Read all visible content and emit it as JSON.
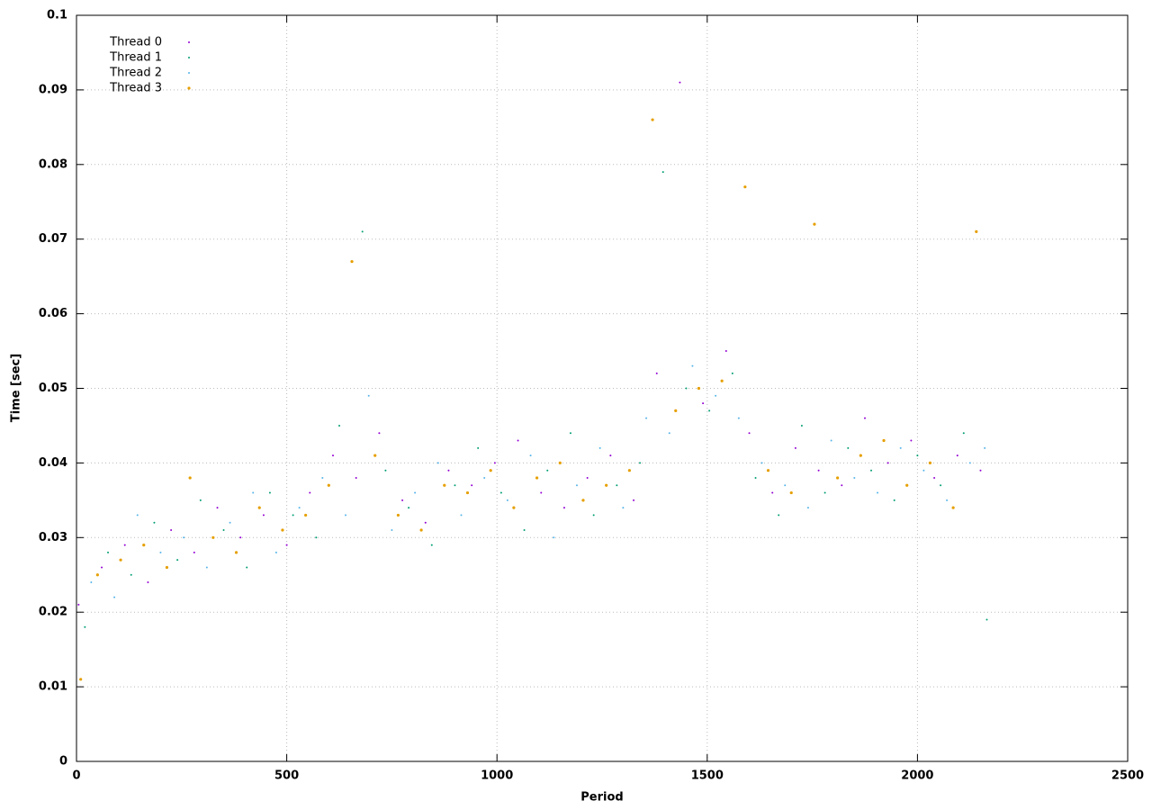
{
  "chart_data": {
    "type": "scatter",
    "x_label": "Period",
    "y_label": "Time [sec]",
    "xlim": [
      0,
      2500
    ],
    "xticks": [
      0,
      500,
      1000,
      1500,
      2000,
      2500
    ],
    "ylim": [
      0,
      0.1
    ],
    "yticks": [
      0,
      0.01,
      0.02,
      0.03,
      0.04,
      0.05,
      0.06,
      0.07,
      0.08,
      0.09,
      0.1
    ],
    "grid": true,
    "legend": "top-left",
    "series": [
      {
        "name": "Thread 0",
        "color": "#9400d3",
        "x": [
          5,
          60,
          115,
          170,
          225,
          280,
          335,
          390,
          445,
          500,
          555,
          610,
          665,
          720,
          775,
          830,
          885,
          940,
          995,
          1050,
          1105,
          1160,
          1215,
          1270,
          1325,
          1380,
          1435,
          1490,
          1545,
          1600,
          1655,
          1710,
          1765,
          1820,
          1875,
          1930,
          1985,
          2040,
          2095,
          2150
        ],
        "values": [
          0.021,
          0.026,
          0.029,
          0.024,
          0.031,
          0.028,
          0.034,
          0.03,
          0.033,
          0.029,
          0.036,
          0.041,
          0.038,
          0.044,
          0.035,
          0.032,
          0.039,
          0.037,
          0.04,
          0.043,
          0.036,
          0.034,
          0.038,
          0.041,
          0.035,
          0.052,
          0.091,
          0.048,
          0.055,
          0.044,
          0.036,
          0.042,
          0.039,
          0.037,
          0.046,
          0.04,
          0.043,
          0.038,
          0.041,
          0.039
        ]
      },
      {
        "name": "Thread 1",
        "color": "#009e73",
        "x": [
          20,
          75,
          130,
          185,
          240,
          295,
          350,
          405,
          460,
          515,
          570,
          625,
          680,
          735,
          790,
          845,
          900,
          955,
          1010,
          1065,
          1120,
          1175,
          1230,
          1285,
          1340,
          1395,
          1450,
          1505,
          1560,
          1615,
          1670,
          1725,
          1780,
          1835,
          1890,
          1945,
          2000,
          2055,
          2110,
          2165
        ],
        "values": [
          0.018,
          0.028,
          0.025,
          0.032,
          0.027,
          0.035,
          0.031,
          0.026,
          0.036,
          0.033,
          0.03,
          0.045,
          0.071,
          0.039,
          0.034,
          0.029,
          0.037,
          0.042,
          0.036,
          0.031,
          0.039,
          0.044,
          0.033,
          0.037,
          0.04,
          0.079,
          0.05,
          0.047,
          0.052,
          0.038,
          0.033,
          0.045,
          0.036,
          0.042,
          0.039,
          0.035,
          0.041,
          0.037,
          0.044,
          0.019
        ]
      },
      {
        "name": "Thread 2",
        "color": "#56b4e9",
        "x": [
          35,
          90,
          145,
          200,
          255,
          310,
          365,
          420,
          475,
          530,
          585,
          640,
          695,
          750,
          805,
          860,
          915,
          970,
          1025,
          1080,
          1135,
          1190,
          1245,
          1300,
          1355,
          1410,
          1465,
          1520,
          1575,
          1630,
          1685,
          1740,
          1795,
          1850,
          1905,
          1960,
          2015,
          2070,
          2125,
          2160
        ],
        "values": [
          0.024,
          0.022,
          0.033,
          0.028,
          0.03,
          0.026,
          0.032,
          0.036,
          0.028,
          0.034,
          0.038,
          0.033,
          0.049,
          0.031,
          0.036,
          0.04,
          0.033,
          0.038,
          0.035,
          0.041,
          0.03,
          0.037,
          0.042,
          0.034,
          0.046,
          0.044,
          0.053,
          0.049,
          0.046,
          0.04,
          0.037,
          0.034,
          0.043,
          0.038,
          0.036,
          0.042,
          0.039,
          0.035,
          0.04,
          0.042
        ]
      },
      {
        "name": "Thread 3",
        "color": "#e69f00",
        "x": [
          10,
          50,
          105,
          160,
          215,
          270,
          325,
          380,
          435,
          490,
          545,
          600,
          655,
          710,
          765,
          820,
          875,
          930,
          985,
          1040,
          1095,
          1150,
          1205,
          1260,
          1315,
          1370,
          1425,
          1480,
          1535,
          1590,
          1645,
          1700,
          1755,
          1810,
          1865,
          1920,
          1975,
          2030,
          2085,
          2140
        ],
        "values": [
          0.011,
          0.025,
          0.027,
          0.029,
          0.026,
          0.038,
          0.03,
          0.028,
          0.034,
          0.031,
          0.033,
          0.037,
          0.067,
          0.041,
          0.033,
          0.031,
          0.037,
          0.036,
          0.039,
          0.034,
          0.038,
          0.04,
          0.035,
          0.037,
          0.039,
          0.086,
          0.047,
          0.05,
          0.051,
          0.077,
          0.039,
          0.036,
          0.072,
          0.038,
          0.041,
          0.043,
          0.037,
          0.04,
          0.034,
          0.071
        ]
      }
    ]
  }
}
